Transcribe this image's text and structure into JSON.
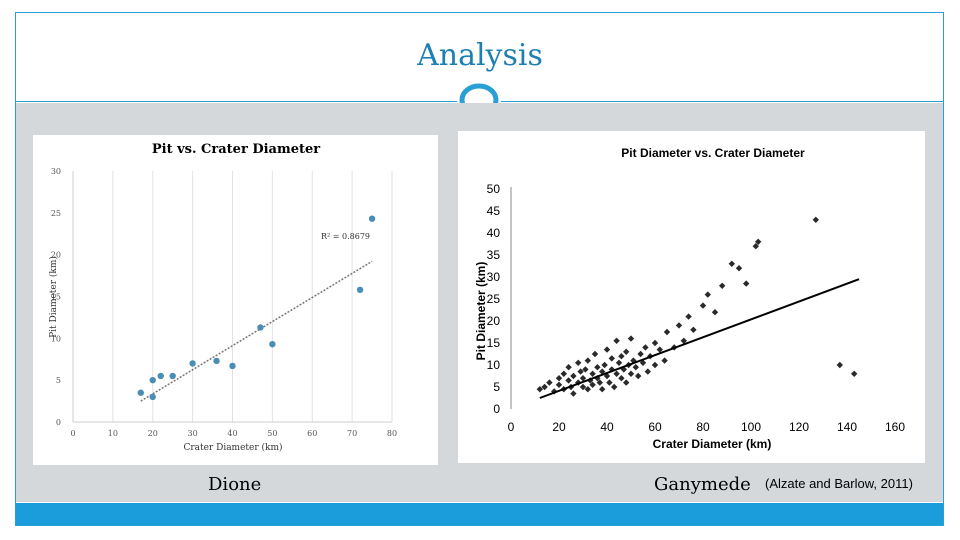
{
  "slide": {
    "title": "Analysis",
    "left_caption": "Dione",
    "right_caption": "Ganymede",
    "citation": "(Alzate and Barlow, 2011)",
    "colors": {
      "accent": "#2a9fd6",
      "footer": "#1b9ddb",
      "content_bg": "#d4d8db",
      "title": "#1f7fb3"
    }
  },
  "chart_data": [
    {
      "type": "scatter",
      "title": "Pit vs. Crater Diameter",
      "xlabel": "Crater Diameter (km)",
      "ylabel": "Pit Diameter (km)",
      "xlim": [
        0,
        80
      ],
      "ylim": [
        0,
        30
      ],
      "xticks": [
        "0",
        "10",
        "20",
        "30",
        "40",
        "50",
        "60",
        "70",
        "80"
      ],
      "yticks": [
        "0",
        "5",
        "10",
        "15",
        "20",
        "25",
        "30"
      ],
      "grid": "vertical",
      "annotation": "R² = 0.8679",
      "marker_color": "#4a8db5",
      "points": [
        {
          "x": 17,
          "y": 3.5
        },
        {
          "x": 20,
          "y": 3.0
        },
        {
          "x": 20,
          "y": 5.0
        },
        {
          "x": 22,
          "y": 5.5
        },
        {
          "x": 25,
          "y": 5.5
        },
        {
          "x": 30,
          "y": 7.0
        },
        {
          "x": 36,
          "y": 7.3
        },
        {
          "x": 40,
          "y": 6.7
        },
        {
          "x": 47,
          "y": 11.3
        },
        {
          "x": 50,
          "y": 9.3
        },
        {
          "x": 72,
          "y": 15.8
        },
        {
          "x": 75,
          "y": 24.3
        }
      ],
      "trendline": [
        {
          "x": 17,
          "y": 2.5
        },
        {
          "x": 75,
          "y": 19.2
        }
      ]
    },
    {
      "type": "scatter",
      "title": "Pit Diameter vs. Crater Diameter",
      "xlabel": "Crater Diameter (km)",
      "ylabel": "Pit Diameter (km)",
      "xlim": [
        0,
        160
      ],
      "ylim": [
        0,
        50
      ],
      "xticks": [
        "0",
        "20",
        "40",
        "60",
        "80",
        "100",
        "120",
        "140",
        "160"
      ],
      "yticks": [
        "0",
        "5",
        "10",
        "15",
        "20",
        "25",
        "30",
        "35",
        "40",
        "45",
        "50"
      ],
      "grid": "none",
      "marker_color": "#2a2a2a",
      "points": [
        {
          "x": 12,
          "y": 4.5
        },
        {
          "x": 14,
          "y": 5.0
        },
        {
          "x": 16,
          "y": 6.0
        },
        {
          "x": 18,
          "y": 4.0
        },
        {
          "x": 20,
          "y": 7.0
        },
        {
          "x": 20,
          "y": 5.5
        },
        {
          "x": 22,
          "y": 4.5
        },
        {
          "x": 22,
          "y": 8.0
        },
        {
          "x": 24,
          "y": 6.5
        },
        {
          "x": 24,
          "y": 9.5
        },
        {
          "x": 25,
          "y": 5.0
        },
        {
          "x": 26,
          "y": 7.5
        },
        {
          "x": 26,
          "y": 3.5
        },
        {
          "x": 28,
          "y": 6.0
        },
        {
          "x": 28,
          "y": 10.5
        },
        {
          "x": 29,
          "y": 8.5
        },
        {
          "x": 30,
          "y": 5.0
        },
        {
          "x": 30,
          "y": 7.0
        },
        {
          "x": 31,
          "y": 9.0
        },
        {
          "x": 32,
          "y": 4.5
        },
        {
          "x": 32,
          "y": 11.0
        },
        {
          "x": 33,
          "y": 6.5
        },
        {
          "x": 34,
          "y": 8.0
        },
        {
          "x": 34,
          "y": 5.5
        },
        {
          "x": 35,
          "y": 12.5
        },
        {
          "x": 36,
          "y": 7.0
        },
        {
          "x": 36,
          "y": 9.5
        },
        {
          "x": 37,
          "y": 6.0
        },
        {
          "x": 38,
          "y": 8.5
        },
        {
          "x": 38,
          "y": 4.5
        },
        {
          "x": 39,
          "y": 10.0
        },
        {
          "x": 40,
          "y": 7.5
        },
        {
          "x": 40,
          "y": 13.5
        },
        {
          "x": 41,
          "y": 6.0
        },
        {
          "x": 42,
          "y": 9.0
        },
        {
          "x": 42,
          "y": 11.5
        },
        {
          "x": 43,
          "y": 5.0
        },
        {
          "x": 44,
          "y": 8.0
        },
        {
          "x": 44,
          "y": 15.5
        },
        {
          "x": 45,
          "y": 10.5
        },
        {
          "x": 46,
          "y": 7.0
        },
        {
          "x": 46,
          "y": 12.0
        },
        {
          "x": 47,
          "y": 9.0
        },
        {
          "x": 48,
          "y": 6.0
        },
        {
          "x": 48,
          "y": 13.0
        },
        {
          "x": 49,
          "y": 10.0
        },
        {
          "x": 50,
          "y": 8.0
        },
        {
          "x": 50,
          "y": 16.0
        },
        {
          "x": 51,
          "y": 11.0
        },
        {
          "x": 52,
          "y": 9.5
        },
        {
          "x": 53,
          "y": 7.5
        },
        {
          "x": 54,
          "y": 12.5
        },
        {
          "x": 55,
          "y": 10.5
        },
        {
          "x": 56,
          "y": 14.0
        },
        {
          "x": 57,
          "y": 8.5
        },
        {
          "x": 58,
          "y": 12.0
        },
        {
          "x": 60,
          "y": 10.0
        },
        {
          "x": 60,
          "y": 15.0
        },
        {
          "x": 62,
          "y": 13.5
        },
        {
          "x": 64,
          "y": 11.0
        },
        {
          "x": 65,
          "y": 17.5
        },
        {
          "x": 68,
          "y": 14.0
        },
        {
          "x": 70,
          "y": 19.0
        },
        {
          "x": 72,
          "y": 15.5
        },
        {
          "x": 74,
          "y": 21.0
        },
        {
          "x": 76,
          "y": 18.0
        },
        {
          "x": 80,
          "y": 23.5
        },
        {
          "x": 82,
          "y": 26.0
        },
        {
          "x": 85,
          "y": 22.0
        },
        {
          "x": 88,
          "y": 28.0
        },
        {
          "x": 92,
          "y": 33.0
        },
        {
          "x": 95,
          "y": 32.0
        },
        {
          "x": 98,
          "y": 28.5
        },
        {
          "x": 102,
          "y": 37.0
        },
        {
          "x": 103,
          "y": 38.0
        },
        {
          "x": 127,
          "y": 43.0
        },
        {
          "x": 137,
          "y": 10.0
        },
        {
          "x": 143,
          "y": 8.0
        }
      ],
      "trendline": [
        {
          "x": 12,
          "y": 2.5
        },
        {
          "x": 145,
          "y": 29.5
        }
      ]
    }
  ]
}
